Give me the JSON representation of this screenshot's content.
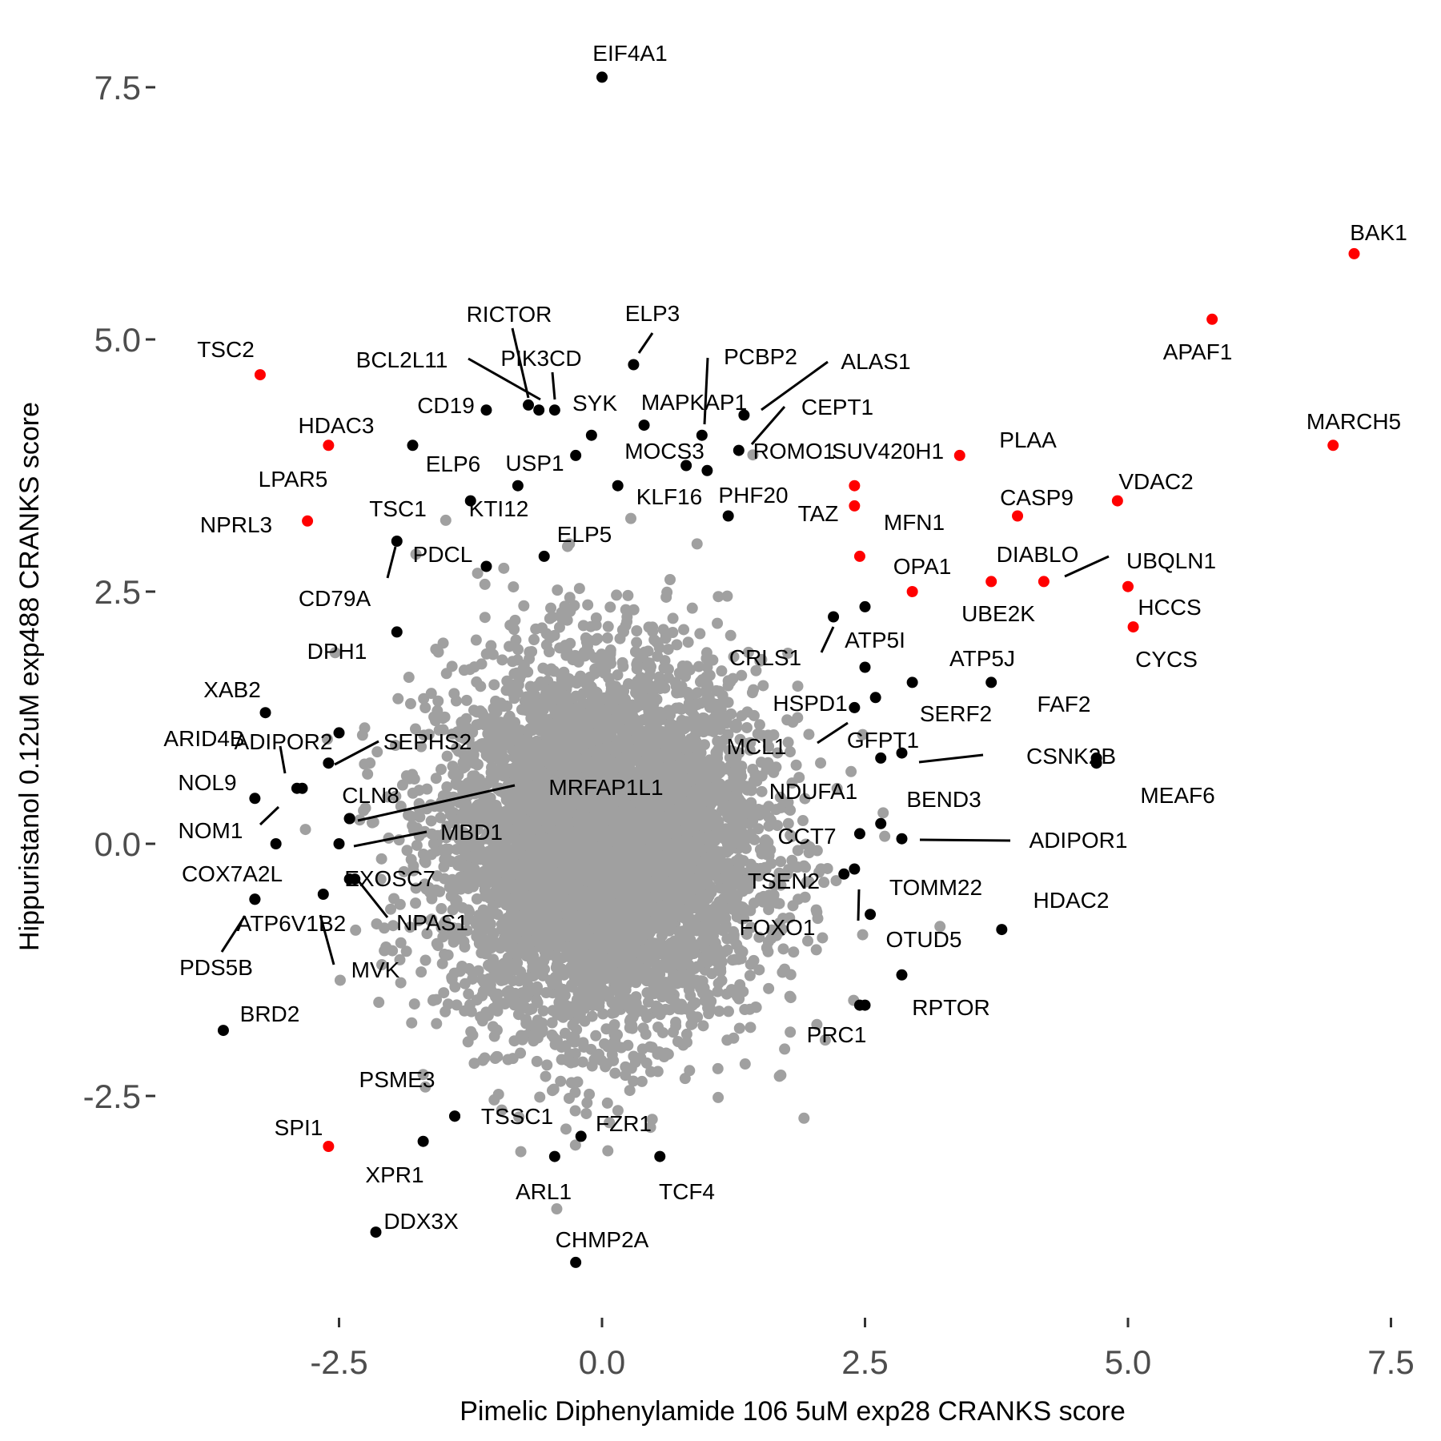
{
  "chart_data": {
    "type": "scatter",
    "title": "",
    "xlabel": "Pimelic Diphenylamide 106 5uM exp28 CRANKS score",
    "ylabel": "Hippuristanol 0.12uM exp488 CRANKS score",
    "xlim": [
      -4.5,
      7.8
    ],
    "ylim": [
      -4.6,
      8.4
    ],
    "xticks": [
      -2.5,
      0.0,
      2.5,
      5.0,
      7.5
    ],
    "yticks": [
      -2.5,
      0.0,
      2.5,
      5.0,
      7.5
    ],
    "xtick_labels": [
      "-2.5",
      "0.0",
      "2.5",
      "5.0",
      "7.5"
    ],
    "ytick_labels": [
      "-2.5",
      "0.0",
      "2.5",
      "5.0",
      "7.5"
    ],
    "grid": false,
    "legend": "none",
    "colors": {
      "background": "#cccccc",
      "highlight": "#ff0000",
      "labeled": "#000000",
      "tick_text": "#4d4d4d"
    },
    "background_cloud": {
      "description_count": 6000,
      "x_sd": 0.75,
      "y_sd": 0.9
    },
    "series": [
      {
        "color": "#ff0000",
        "points": [
          {
            "label": "BAK1",
            "x": 7.15,
            "y": 5.85
          },
          {
            "label": "APAF1",
            "x": 5.8,
            "y": 5.2
          },
          {
            "label": "MARCH5",
            "x": 6.95,
            "y": 3.95
          },
          {
            "label": "TSC2",
            "x": -3.25,
            "y": 4.65
          },
          {
            "label": "HDAC3",
            "x": -2.6,
            "y": 3.95
          },
          {
            "label": "NPRL3",
            "x": -2.8,
            "y": 3.2
          },
          {
            "label": "PLAA",
            "x": 3.4,
            "y": 3.85
          },
          {
            "label": "SUV420H1",
            "x": 2.4,
            "y": 3.55
          },
          {
            "label": "TAZ",
            "x": 2.4,
            "y": 3.35
          },
          {
            "label": "VDAC2",
            "x": 4.9,
            "y": 3.4
          },
          {
            "label": "CASP9",
            "x": 3.95,
            "y": 3.25
          },
          {
            "label": "OPA1",
            "x": 2.45,
            "y": 2.85
          },
          {
            "label": "MFN1",
            "x": 2.95,
            "y": 2.5
          },
          {
            "label": "DIABLO",
            "x": 3.7,
            "y": 2.6
          },
          {
            "label": "UBQLN1",
            "x": 4.2,
            "y": 2.6
          },
          {
            "label": "HCCS",
            "x": 5.0,
            "y": 2.55
          },
          {
            "label": "CYCS",
            "x": 5.05,
            "y": 2.15
          },
          {
            "label": "SPI1",
            "x": -2.6,
            "y": -3.0
          }
        ]
      },
      {
        "color": "#000000",
        "points": [
          {
            "label": "EIF4A1",
            "x": 0.0,
            "y": 7.6
          },
          {
            "label": "ELP3",
            "x": 0.3,
            "y": 4.75
          },
          {
            "label": "RICTOR",
            "x": -0.6,
            "y": 4.3
          },
          {
            "label": "PIK3CD",
            "x": -0.45,
            "y": 4.3
          },
          {
            "label": "BCL2L11",
            "x": -0.7,
            "y": 4.35
          },
          {
            "label": "ALAS1",
            "x": 1.35,
            "y": 4.25
          },
          {
            "label": "PCBP2",
            "x": 0.95,
            "y": 4.05
          },
          {
            "label": "CD19",
            "x": -1.1,
            "y": 4.3
          },
          {
            "label": "CEPT1",
            "x": 1.3,
            "y": 3.9
          },
          {
            "label": "MAPKAP1",
            "x": 0.4,
            "y": 4.15
          },
          {
            "label": "SYK",
            "x": -0.1,
            "y": 4.05
          },
          {
            "label": "ELP6",
            "x": -1.8,
            "y": 3.95
          },
          {
            "label": "MOCS3",
            "x": 0.8,
            "y": 3.75
          },
          {
            "label": "USP1",
            "x": -0.25,
            "y": 3.85
          },
          {
            "label": "ROMO1",
            "x": 1.0,
            "y": 3.7
          },
          {
            "label": "KTI12",
            "x": -0.8,
            "y": 3.55
          },
          {
            "label": "KLF16",
            "x": 0.15,
            "y": 3.55
          },
          {
            "label": "PHF20",
            "x": 1.2,
            "y": 3.25
          },
          {
            "label": "TSC1",
            "x": -1.25,
            "y": 3.4
          },
          {
            "label": "PDCL",
            "x": -1.1,
            "y": 2.75
          },
          {
            "label": "CD79A",
            "x": -1.95,
            "y": 3.0
          },
          {
            "label": "ELP5",
            "x": -0.55,
            "y": 2.85
          },
          {
            "label": "DPH1",
            "x": -1.95,
            "y": 2.1
          },
          {
            "label": "ATP5I",
            "x": 2.5,
            "y": 2.35
          },
          {
            "label": "CRLS1",
            "x": 2.2,
            "y": 2.25
          },
          {
            "label": "ATP5J",
            "x": 3.7,
            "y": 1.6
          },
          {
            "label": "HSPD1",
            "x": 2.5,
            "y": 1.75
          },
          {
            "label": "SERF2",
            "x": 2.95,
            "y": 1.6
          },
          {
            "label": "MCL1",
            "x": 2.4,
            "y": 1.35
          },
          {
            "label": "GFPT1",
            "x": 2.6,
            "y": 1.45
          },
          {
            "label": "FAF2",
            "x": 4.7,
            "y": 0.85
          },
          {
            "label": "CSNK2B",
            "x": 2.85,
            "y": 0.9
          },
          {
            "label": "NDUFA1",
            "x": 2.65,
            "y": 0.85
          },
          {
            "label": "MEAF6",
            "x": 4.7,
            "y": 0.8
          },
          {
            "label": "BEND3",
            "x": 2.65,
            "y": 0.2
          },
          {
            "label": "ADIPOR1",
            "x": 2.85,
            "y": 0.05
          },
          {
            "label": "CCT7",
            "x": 2.45,
            "y": 0.1
          },
          {
            "label": "TSEN2",
            "x": 2.3,
            "y": -0.3
          },
          {
            "label": "TOMM22",
            "x": 2.4,
            "y": -0.25
          },
          {
            "label": "FOXO1",
            "x": 2.55,
            "y": -0.7
          },
          {
            "label": "OTUD5",
            "x": 2.85,
            "y": -1.3
          },
          {
            "label": "HDAC2",
            "x": 3.8,
            "y": -0.85
          },
          {
            "label": "RPTOR",
            "x": 2.5,
            "y": -1.6
          },
          {
            "label": "PRC1",
            "x": 2.45,
            "y": -1.6
          },
          {
            "label": "XAB2",
            "x": -3.2,
            "y": 1.3
          },
          {
            "label": "ARID4B",
            "x": -2.85,
            "y": 0.55
          },
          {
            "label": "ADIPOR2",
            "x": -2.5,
            "y": 1.1
          },
          {
            "label": "SEPHS2",
            "x": -2.6,
            "y": 0.8
          },
          {
            "label": "NOL9",
            "x": -3.3,
            "y": 0.45
          },
          {
            "label": "NOM1",
            "x": -2.9,
            "y": 0.55
          },
          {
            "label": "CLN8",
            "x": -2.4,
            "y": 0.25
          },
          {
            "label": "MRFAP1L1",
            "x": -2.4,
            "y": 0.25
          },
          {
            "label": "MBD1",
            "x": -2.5,
            "y": 0.0
          },
          {
            "label": "COX7A2L",
            "x": -3.1,
            "y": 0.0
          },
          {
            "label": "EXOSC7",
            "x": -2.4,
            "y": -0.35
          },
          {
            "label": "NPAS1",
            "x": -2.35,
            "y": -0.35
          },
          {
            "label": "ATP6V1B2",
            "x": -3.3,
            "y": -0.55
          },
          {
            "label": "PDS5B",
            "x": -3.3,
            "y": -0.55
          },
          {
            "label": "MVK",
            "x": -2.65,
            "y": -0.5
          },
          {
            "label": "BRD2",
            "x": -3.6,
            "y": -1.85
          },
          {
            "label": "PSME3",
            "x": -1.4,
            "y": -2.7
          },
          {
            "label": "TSSC1",
            "x": -1.4,
            "y": -2.7
          },
          {
            "label": "FZR1",
            "x": -0.2,
            "y": -2.9
          },
          {
            "label": "XPR1",
            "x": -1.7,
            "y": -2.95
          },
          {
            "label": "ARL1",
            "x": -0.45,
            "y": -3.1
          },
          {
            "label": "TCF4",
            "x": 0.55,
            "y": -3.1
          },
          {
            "label": "DDX3X",
            "x": -2.15,
            "y": -3.85
          },
          {
            "label": "CHMP2A",
            "x": -0.25,
            "y": -4.15
          }
        ]
      }
    ],
    "label_text": {
      "BAK1": "BAK1",
      "APAF1": "APAF1",
      "MARCH5": "MARCH5",
      "TSC2": "TSC2",
      "HDAC3": "HDAC3",
      "LPAR5": "LPAR5",
      "NPRL3": "NPRL3",
      "PLAA": "PLAA",
      "SUV420H1": "SUV420H1",
      "TAZ": "TAZ",
      "VDAC2": "VDAC2",
      "CASP9": "CASP9",
      "OPA1": "OPA1",
      "MFN1": "MFN1",
      "DIABLO": "DIABLO",
      "UBQLN1": "UBQLN1",
      "HCCS": "HCCS",
      "CYCS": "CYCS",
      "SPI1": "SPI1",
      "EIF4A1": "EIF4A1",
      "ELP3": "ELP3",
      "RICTOR": "RICTOR",
      "PIK3CD": "PIK3CD",
      "BCL2L11": "BCL2L11",
      "ALAS1": "ALAS1",
      "PCBP2": "PCBP2",
      "CD19": "CD19",
      "CEPT1": "CEPT1",
      "MAPKAP1": "MAPKAP1",
      "SYK": "SYK",
      "ELP6": "ELP6",
      "MOCS3": "MOCS3",
      "USP1": "USP1",
      "ROMO1": "ROMO1",
      "KTI12": "KTI12",
      "KLF16": "KLF16",
      "PHF20": "PHF20",
      "TSC1": "TSC1",
      "PDCL": "PDCL",
      "CD79A": "CD79A",
      "ELP5": "ELP5",
      "DPH1": "DPH1",
      "ATP5I": "ATP5I",
      "CRLS1": "CRLS1",
      "ATP5J": "ATP5J",
      "UBE2K": "UBE2K",
      "HSPD1": "HSPD1",
      "SERF2": "SERF2",
      "MCL1": "MCL1",
      "GFPT1": "GFPT1",
      "FAF2": "FAF2",
      "CSNK2B": "CSNK2B",
      "NDUFA1": "NDUFA1",
      "MEAF6": "MEAF6",
      "BEND3": "BEND3",
      "ADIPOR1": "ADIPOR1",
      "CCT7": "CCT7",
      "TSEN2": "TSEN2",
      "TOMM22": "TOMM22",
      "FOXO1": "FOXO1",
      "OTUD5": "OTUD5",
      "HDAC2": "HDAC2",
      "RPTOR": "RPTOR",
      "PRC1": "PRC1",
      "XAB2": "XAB2",
      "ARID4B": "ARID4B",
      "ADIPOR2": "ADIPOR2",
      "SEPHS2": "SEPHS2",
      "NOL9": "NOL9",
      "NOM1": "NOM1",
      "CLN8": "CLN8",
      "MRFAP1L1": "MRFAP1L1",
      "MBD1": "MBD1",
      "COX7A2L": "COX7A2L",
      "EXOSC7": "EXOSC7",
      "NPAS1": "NPAS1",
      "ATP6V1B2": "ATP6V1B2",
      "PDS5B": "PDS5B",
      "MVK": "MVK",
      "BRD2": "BRD2",
      "PSME3": "PSME3",
      "TSSC1": "TSSC1",
      "FZR1": "FZR1",
      "XPR1": "XPR1",
      "ARL1": "ARL1",
      "TCF4": "TCF4",
      "DDX3X": "DDX3X",
      "CHMP2A": "CHMP2A"
    }
  }
}
